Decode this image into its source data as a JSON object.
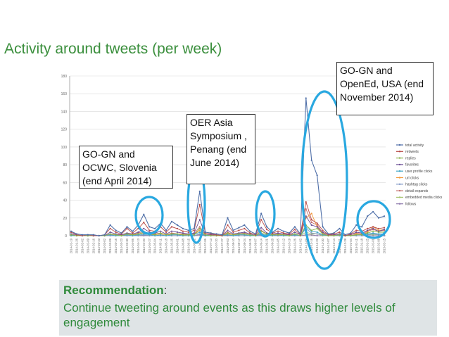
{
  "slide": {
    "title": "Activity around tweets (per week)"
  },
  "callouts": [
    {
      "id": "gogn-ocwc",
      "text": "GO-GN and OCWC, Slovenia (end April 2014)"
    },
    {
      "id": "oer-asia",
      "text": "OER Asia Symposium , Penang (end June 2014)"
    },
    {
      "id": "gogn-opened",
      "text": "GO-GN and OpenEd, USA (end November 2014)"
    }
  ],
  "recommendation": {
    "heading": "Recommendation",
    "heading_suffix": ":",
    "body": "Continue tweeting around events as this draws higher levels of engagement"
  },
  "colors": {
    "title": "#3b8f3d",
    "recommendation_text": "#2f8a3b",
    "recommendation_bg": "#dfe4e6",
    "highlight_ellipse": "#29a8e0"
  },
  "chart_data": {
    "type": "line",
    "ylim": [
      0,
      180
    ],
    "yticks": [
      0,
      20,
      40,
      60,
      80,
      100,
      120,
      140,
      160,
      180
    ],
    "grid": true,
    "legend_position": "right",
    "x": [
      "2014-01-19",
      "2014-01-26",
      "2014-02-02",
      "2014-02-09",
      "2014-02-16",
      "2014-02-23",
      "2014-03-02",
      "2014-03-09",
      "2014-03-16",
      "2014-03-23",
      "2014-03-30",
      "2014-04-06",
      "2014-04-13",
      "2014-04-20",
      "2014-04-27",
      "2014-05-04",
      "2014-05-11",
      "2014-05-18",
      "2014-05-25",
      "2014-06-01",
      "2014-06-08",
      "2014-06-15",
      "2014-06-22",
      "2014-06-29",
      "2014-07-06",
      "2014-07-13",
      "2014-07-20",
      "2014-07-27",
      "2014-08-03",
      "2014-08-10",
      "2014-08-17",
      "2014-08-24",
      "2014-08-31",
      "2014-09-07",
      "2014-09-14",
      "2014-09-21",
      "2014-09-28",
      "2014-10-05",
      "2014-10-12",
      "2014-10-19",
      "2014-10-26",
      "2014-11-02",
      "2014-11-09",
      "2014-11-16",
      "2014-11-23",
      "2014-11-30",
      "2014-12-07",
      "2014-12-14",
      "2014-12-21",
      "2014-12-28",
      "2015-01-04",
      "2015-01-11",
      "2015-01-18",
      "2015-01-25",
      "2015-02-01",
      "2015-02-08",
      "2015-02-15"
    ],
    "series": [
      {
        "name": "total activity",
        "color": "#4f6fa8",
        "values": [
          5,
          2,
          1,
          1,
          1,
          0,
          1,
          12,
          6,
          3,
          10,
          5,
          12,
          24,
          10,
          8,
          14,
          6,
          16,
          12,
          8,
          6,
          8,
          50,
          4,
          3,
          2,
          1,
          20,
          6,
          9,
          12,
          5,
          2,
          25,
          10,
          4,
          8,
          5,
          3,
          10,
          2,
          155,
          85,
          68,
          10,
          2,
          3,
          8,
          1,
          3,
          12,
          10,
          22,
          27,
          20,
          22
        ]
      },
      {
        "name": "retweets",
        "color": "#b84a46",
        "values": [
          4,
          1,
          0,
          1,
          0,
          0,
          1,
          8,
          4,
          2,
          8,
          3,
          8,
          15,
          6,
          5,
          10,
          4,
          10,
          8,
          5,
          4,
          6,
          35,
          3,
          2,
          1,
          0,
          12,
          4,
          6,
          8,
          3,
          1,
          18,
          7,
          3,
          5,
          3,
          2,
          7,
          1,
          38,
          18,
          14,
          6,
          1,
          2,
          4,
          0,
          2,
          6,
          5,
          8,
          10,
          8,
          9
        ]
      },
      {
        "name": "replies",
        "color": "#8ab14b",
        "values": [
          1,
          0,
          0,
          0,
          0,
          0,
          0,
          2,
          1,
          0,
          2,
          1,
          2,
          4,
          2,
          1,
          3,
          1,
          2,
          2,
          1,
          1,
          1,
          8,
          1,
          0,
          0,
          0,
          3,
          1,
          2,
          2,
          1,
          0,
          5,
          2,
          1,
          1,
          1,
          0,
          2,
          0,
          12,
          6,
          8,
          2,
          0,
          0,
          1,
          0,
          0,
          1,
          1,
          3,
          5,
          4,
          4
        ]
      },
      {
        "name": "favorites",
        "color": "#6c4f96",
        "values": [
          2,
          1,
          0,
          0,
          0,
          0,
          0,
          4,
          2,
          1,
          3,
          2,
          4,
          8,
          4,
          3,
          5,
          2,
          5,
          4,
          3,
          2,
          3,
          18,
          1,
          1,
          1,
          0,
          6,
          2,
          3,
          4,
          2,
          1,
          9,
          3,
          2,
          3,
          2,
          1,
          4,
          1,
          22,
          12,
          10,
          4,
          1,
          1,
          2,
          0,
          1,
          4,
          3,
          6,
          8,
          5,
          7
        ]
      },
      {
        "name": "user profile clicks",
        "color": "#3fa6c5",
        "values": [
          0,
          0,
          0,
          0,
          0,
          0,
          0,
          1,
          0,
          0,
          1,
          0,
          1,
          2,
          1,
          0,
          1,
          0,
          1,
          1,
          0,
          0,
          1,
          4,
          0,
          0,
          0,
          0,
          1,
          0,
          1,
          1,
          0,
          0,
          2,
          1,
          0,
          1,
          0,
          0,
          1,
          0,
          10,
          5,
          4,
          1,
          0,
          0,
          1,
          0,
          0,
          1,
          1,
          2,
          3,
          2,
          2
        ]
      },
      {
        "name": "url clicks",
        "color": "#f39a3b",
        "values": [
          0,
          0,
          0,
          0,
          0,
          0,
          0,
          1,
          1,
          0,
          1,
          1,
          1,
          3,
          1,
          1,
          2,
          1,
          1,
          1,
          1,
          0,
          1,
          6,
          0,
          0,
          0,
          0,
          2,
          1,
          1,
          1,
          0,
          0,
          3,
          1,
          0,
          1,
          1,
          0,
          1,
          0,
          20,
          25,
          10,
          2,
          0,
          0,
          1,
          0,
          0,
          2,
          1,
          4,
          10,
          6,
          7
        ]
      },
      {
        "name": "hashtag clicks",
        "color": "#7f96c4",
        "values": [
          0,
          0,
          0,
          0,
          0,
          0,
          0,
          0,
          0,
          0,
          0,
          0,
          0,
          1,
          0,
          0,
          0,
          0,
          0,
          0,
          0,
          0,
          0,
          2,
          0,
          0,
          0,
          0,
          1,
          0,
          0,
          0,
          0,
          0,
          1,
          0,
          0,
          0,
          0,
          0,
          0,
          0,
          8,
          3,
          2,
          1,
          0,
          0,
          0,
          0,
          0,
          0,
          0,
          1,
          2,
          1,
          1
        ]
      },
      {
        "name": "detail expands",
        "color": "#c46f6c",
        "values": [
          1,
          0,
          0,
          0,
          0,
          0,
          0,
          2,
          1,
          1,
          2,
          1,
          3,
          5,
          2,
          2,
          3,
          1,
          3,
          2,
          2,
          1,
          2,
          10,
          1,
          1,
          0,
          0,
          4,
          1,
          2,
          3,
          1,
          0,
          6,
          2,
          1,
          2,
          1,
          1,
          2,
          0,
          30,
          15,
          12,
          3,
          0,
          1,
          2,
          0,
          1,
          3,
          2,
          5,
          7,
          5,
          6
        ]
      },
      {
        "name": "embedded media clicks",
        "color": "#a7c46f",
        "values": [
          0,
          0,
          0,
          0,
          0,
          0,
          0,
          0,
          0,
          0,
          0,
          0,
          0,
          1,
          0,
          0,
          0,
          0,
          0,
          0,
          0,
          0,
          0,
          2,
          0,
          0,
          0,
          0,
          1,
          0,
          0,
          0,
          0,
          0,
          1,
          0,
          0,
          0,
          0,
          0,
          0,
          0,
          4,
          2,
          2,
          0,
          0,
          0,
          0,
          0,
          0,
          0,
          0,
          1,
          1,
          1,
          1
        ]
      },
      {
        "name": "follows",
        "color": "#8f7aad",
        "values": [
          0,
          0,
          0,
          0,
          0,
          0,
          0,
          0,
          0,
          0,
          0,
          0,
          0,
          0,
          0,
          0,
          0,
          0,
          0,
          0,
          0,
          0,
          0,
          1,
          0,
          0,
          0,
          0,
          0,
          0,
          0,
          0,
          0,
          0,
          0,
          0,
          0,
          0,
          0,
          0,
          0,
          0,
          1,
          1,
          0,
          0,
          0,
          0,
          0,
          0,
          0,
          0,
          0,
          0,
          0,
          0,
          0
        ]
      }
    ]
  }
}
